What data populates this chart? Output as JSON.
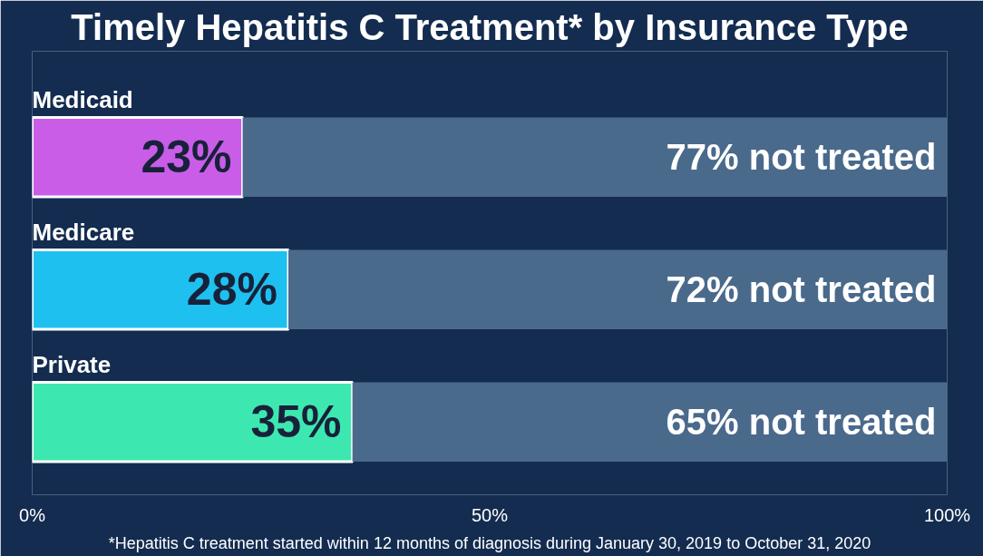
{
  "chart_data": {
    "type": "bar",
    "orientation": "horizontal",
    "stacked": true,
    "title": "Timely Hepatitis C Treatment* by Insurance Type",
    "categories": [
      "Medicaid",
      "Medicare",
      "Private"
    ],
    "series": [
      {
        "colors": [
          "#c95de8",
          "#1ec0f0",
          "#3de8b0"
        ],
        "values": [
          23,
          28,
          35
        ],
        "value_labels": [
          "23%",
          "28%",
          "35%"
        ]
      },
      {
        "color": "#4a6a8c",
        "values": [
          77,
          72,
          65
        ],
        "value_labels": [
          "77% not treated",
          "72% not treated",
          "65% not treated"
        ]
      }
    ],
    "xlim": [
      0,
      100
    ],
    "xticks": [
      {
        "value": 0,
        "label": "0%"
      },
      {
        "value": 50,
        "label": "50%"
      },
      {
        "value": 100,
        "label": "100%"
      }
    ],
    "tick_labels": "x",
    "grid": false,
    "annotations": [
      "*Hepatitis C treatment started within 12 months of diagnosis during January 30, 2019 to October 31, 2020"
    ]
  }
}
